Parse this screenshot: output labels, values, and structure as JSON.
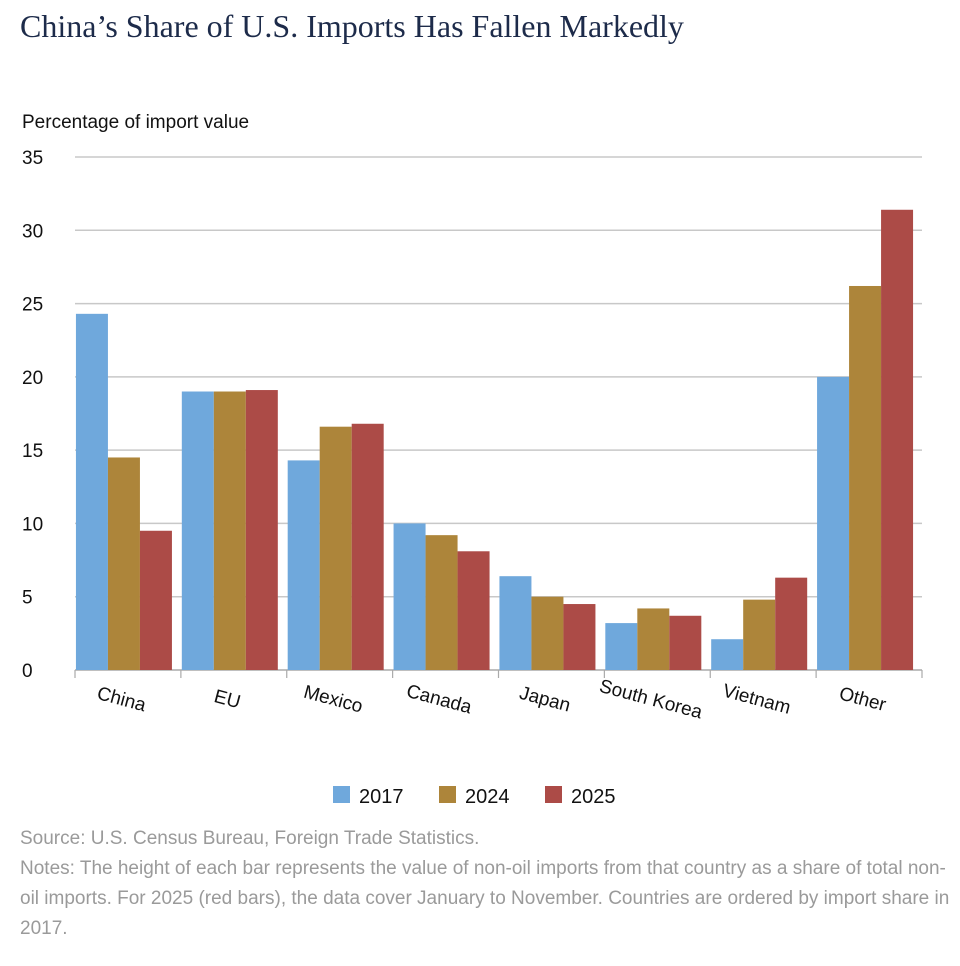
{
  "title": "China’s Share of U.S. Imports Has Fallen Markedly",
  "chart_data": {
    "type": "bar",
    "title": "China’s Share of U.S. Imports Has Fallen Markedly",
    "ylabel": "Percentage of import value",
    "xlabel": "",
    "ylim": [
      0,
      35
    ],
    "yticks": [
      "0",
      "5",
      "10",
      "15",
      "20",
      "25",
      "30",
      "35"
    ],
    "grid": true,
    "legend_placement": "bottom",
    "categories": [
      "China",
      "EU",
      "Mexico",
      "Canada",
      "Japan",
      "South Korea",
      "Vietnam",
      "Other"
    ],
    "series": [
      {
        "name": "2017",
        "color": "#6fa8dc",
        "values": [
          24.3,
          19.0,
          14.3,
          10.0,
          6.4,
          3.2,
          2.1,
          20.0
        ]
      },
      {
        "name": "2024",
        "color": "#ad853a",
        "values": [
          14.5,
          19.0,
          16.6,
          9.2,
          5.0,
          4.2,
          4.8,
          26.2
        ]
      },
      {
        "name": "2025",
        "color": "#ac4b47",
        "values": [
          9.5,
          19.1,
          16.8,
          8.1,
          4.5,
          3.7,
          6.3,
          31.4
        ]
      }
    ]
  },
  "source": "Source: U.S. Census Bureau, Foreign Trade Statistics.",
  "notes": "Notes: The height of each bar represents the value of non-oil imports from that country as a share of total non-oil imports. For 2025 (red bars), the data cover January to November. Countries are ordered by import share in 2017."
}
